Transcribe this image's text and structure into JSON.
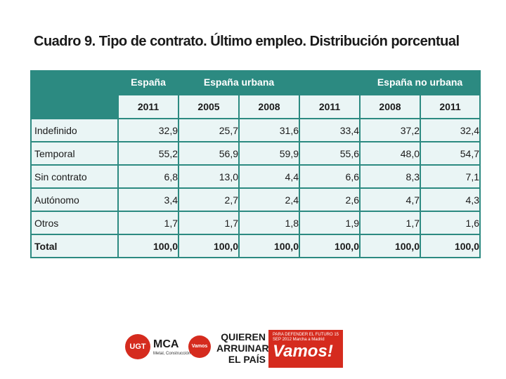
{
  "title": "Cuadro 9. Tipo de contrato. Último empleo. Distribución porcentual",
  "table": {
    "groups": [
      "España",
      "España urbana",
      "España no urbana"
    ],
    "years": [
      "2011",
      "2005",
      "2008",
      "2011",
      "2008",
      "2011"
    ],
    "rows": [
      {
        "label": "Indefinido",
        "values": [
          "32,9",
          "25,7",
          "31,6",
          "33,4",
          "37,2",
          "32,4"
        ]
      },
      {
        "label": "Temporal",
        "values": [
          "55,2",
          "56,9",
          "59,9",
          "55,6",
          "48,0",
          "54,7"
        ]
      },
      {
        "label": "Sin contrato",
        "values": [
          "6,8",
          "13,0",
          "4,4",
          "6,6",
          "8,3",
          "7,1"
        ]
      },
      {
        "label": "Autónomo",
        "values": [
          "3,4",
          "2,7",
          "2,4",
          "2,6",
          "4,7",
          "4,3"
        ]
      },
      {
        "label": "Otros",
        "values": [
          "1,7",
          "1,7",
          "1,8",
          "1,9",
          "1,7",
          "1,6"
        ]
      },
      {
        "label": "Total",
        "values": [
          "100,0",
          "100,0",
          "100,0",
          "100,0",
          "100,0",
          "100,0"
        ]
      }
    ]
  },
  "footer": {
    "ugt": "UGT",
    "mca": "MCA",
    "mca_sub": "Metal, Construcción",
    "vamos_small": "Vamos",
    "slogan": [
      "QUIEREN",
      "ARRUINAR",
      "EL PAÍS"
    ],
    "banner_top": "PARA DEFENDER EL FUTURO 15 SEP 2012 Marcha a Madrid",
    "banner_main": "Vamos!"
  },
  "colors": {
    "table_teal": "#2c8a81",
    "cell_bg": "#eaf5f5",
    "brand_red": "#d52b1e"
  }
}
